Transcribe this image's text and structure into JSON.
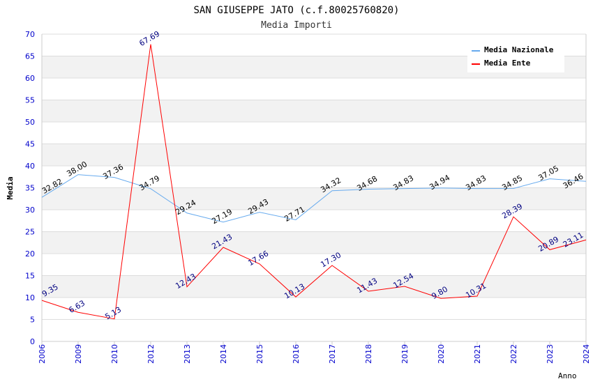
{
  "chart_data": {
    "type": "line",
    "title": "SAN GIUSEPPE JATO (c.f.80025760820)",
    "subtitle": "Media Importi",
    "xlabel": "Anno",
    "ylabel": "Media",
    "ylim": [
      0,
      70
    ],
    "yticks": [
      0,
      5,
      10,
      15,
      20,
      25,
      30,
      35,
      40,
      45,
      50,
      55,
      60,
      65,
      70
    ],
    "categories": [
      "2006",
      "2009",
      "2010",
      "2012",
      "2013",
      "2014",
      "2015",
      "2016",
      "2017",
      "2018",
      "2019",
      "2020",
      "2021",
      "2022",
      "2023",
      "2024"
    ],
    "legend_position": "top-right",
    "series": [
      {
        "name": "Media Nazionale",
        "color": "#66aaee",
        "label_color": "#000000",
        "values": [
          32.82,
          38.0,
          37.36,
          34.79,
          29.24,
          27.19,
          29.43,
          27.71,
          34.32,
          34.68,
          34.83,
          34.94,
          34.83,
          34.85,
          37.05,
          36.46
        ]
      },
      {
        "name": "Media Ente",
        "color": "#ff0000",
        "label_color": "#000080",
        "values": [
          9.35,
          6.63,
          5.13,
          67.69,
          12.43,
          21.43,
          17.66,
          10.13,
          17.3,
          11.43,
          12.54,
          9.8,
          10.31,
          28.39,
          20.89,
          23.11
        ]
      }
    ]
  }
}
